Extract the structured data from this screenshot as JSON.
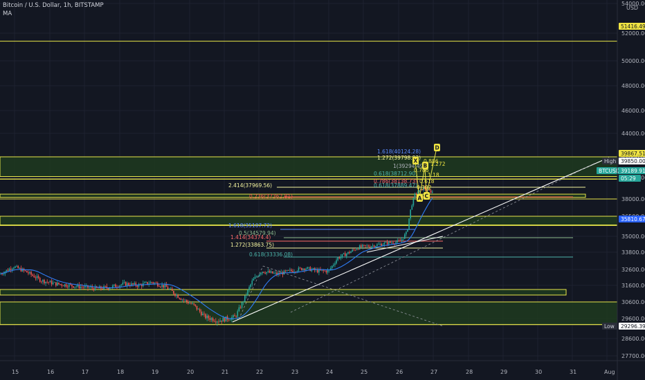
{
  "header": {
    "title": "Bitcoin / U.S. Dollar, 1h, BITSTAMP",
    "indicator": "MA"
  },
  "colors": {
    "bg": "#131722",
    "up": "#26a69a",
    "down": "#ef5350",
    "zone_fill": "#1f3a1f",
    "zone_stroke": "#e8e64a",
    "ma": "#2f7cf6",
    "trend": "#ffffff",
    "grid": "#1e2230"
  },
  "chart_data": {
    "type": "candlestick",
    "title": "Bitcoin / U.S. Dollar, 1h, BITSTAMP",
    "currency": "USD",
    "ylim": [
      26800,
      55200
    ],
    "y_ticks": [
      54000,
      52000,
      50000,
      48000,
      46000,
      44000,
      42000,
      40000,
      38000,
      36500,
      35000,
      33800,
      32600,
      31600,
      30600,
      29600,
      28600,
      27700
    ],
    "y_tick_labels": [
      "54000.00",
      "52000.00",
      "50000.00",
      "48000.00",
      "46000.00",
      "44000.00",
      "42000.00",
      "40000.00",
      "38000.00",
      "36500.00",
      "35000.00",
      "33800.00",
      "32600.00",
      "31600.00",
      "30600.00",
      "29600.00",
      "28600.00",
      "27700.00"
    ],
    "x_labels": [
      "15",
      "16",
      "17",
      "18",
      "19",
      "20",
      "21",
      "22",
      "23",
      "24",
      "25",
      "26",
      "27",
      "28",
      "29",
      "30",
      "31",
      "Aug"
    ],
    "price_labels": [
      {
        "text": "51416.49",
        "price": 51416.49,
        "style": "yellow"
      },
      {
        "text": "39867.51",
        "price": 39867.51,
        "style": "yellow"
      },
      {
        "text": "High",
        "price": 39850,
        "style": "dark"
      },
      {
        "text": "39850.00",
        "price": 39850,
        "style": "white"
      },
      {
        "text": "BTCUSD",
        "price": 39189.91,
        "style": "teal"
      },
      {
        "text": "39189.91",
        "price": 39189.91,
        "style": "teal"
      },
      {
        "text": "05:29",
        "price": 38900,
        "style": "teal"
      },
      {
        "text": "35810.67",
        "price": 35810.67,
        "style": "blue"
      },
      {
        "text": "Low",
        "price": 29296.39,
        "style": "dark"
      },
      {
        "text": "29296.39",
        "price": 29296.39,
        "style": "white"
      }
    ],
    "horizontal_lines": [
      51416.49,
      39867.51,
      39850.0,
      38000,
      36500,
      35810.67,
      30600,
      29296.39
    ],
    "zones": [
      {
        "from": 40100,
        "to": 42000
      },
      {
        "from": 38150,
        "to": 38450
      },
      {
        "from": 35850,
        "to": 36500
      },
      {
        "from": 29300,
        "to": 30600
      }
    ],
    "fib_levels": [
      {
        "text": "1.618(35107.72)",
        "color": "#5b8cff"
      },
      {
        "text": "0.5(34579.94)",
        "color": "#8fbc8f"
      },
      {
        "text": "1.414(34374.4)",
        "color": "#ff6b6b"
      },
      {
        "text": "1.272(33863.75)",
        "color": "#f5f5a0"
      },
      {
        "text": "0.618(33336.08)",
        "color": "#4db6ac"
      },
      {
        "text": "2.414(37969.56)",
        "color": "#f5f5a0"
      },
      {
        "text": "0.236(37362.81)",
        "color": "#ff5252"
      },
      {
        "text": "1.618(40124.28)",
        "color": "#5b8cff"
      },
      {
        "text": "1.272(39798.83)",
        "color": "#f5f5a0"
      },
      {
        "text": "1(39294.49)",
        "color": "#b2b5be"
      },
      {
        "text": "0.618(38712.90)",
        "color": "#4db6ac"
      },
      {
        "text": "0.786(38138.73)",
        "color": "#ff6b6b"
      },
      {
        "text": "0.618(37889.47)",
        "color": "#4db6ac"
      }
    ],
    "harmonic_points": [
      "X",
      "A",
      "B",
      "C",
      "D"
    ],
    "harmonic_texts": [
      "0.786",
      "0.382",
      "0.886",
      "1.18",
      "1.272",
      "0.618"
    ]
  }
}
